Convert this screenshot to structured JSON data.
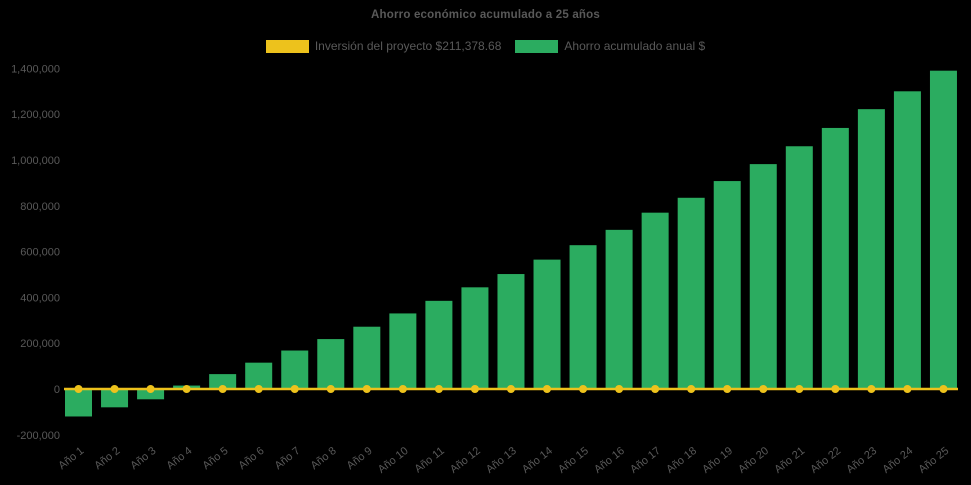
{
  "title": "Ahorro económico acumulado a 25 años",
  "legend": {
    "items": [
      {
        "label": "Inversión del proyecto $211,378.68",
        "color": "#EDC21C",
        "series": "investment-line"
      },
      {
        "label": "Ahorro acumulado anual $",
        "color": "#2BAC60",
        "series": "savings-bars"
      }
    ]
  },
  "colors": {
    "background": "#000000",
    "text": "#595959",
    "bar": "#2BAC60",
    "line": "#EDC21C"
  },
  "chart_data": {
    "type": "bar",
    "title": "Ahorro económico acumulado a 25 años",
    "categories": [
      "Año 1",
      "Año 2",
      "Año 3",
      "Año 4",
      "Año 5",
      "Año 6",
      "Año 7",
      "Año 8",
      "Año 9",
      "Año 10",
      "Año 11",
      "Año 12",
      "Año 13",
      "Año 14",
      "Año 15",
      "Año 16",
      "Año 17",
      "Año 18",
      "Año 19",
      "Año 20",
      "Año 21",
      "Año 22",
      "Año 23",
      "Año 24",
      "Año 25"
    ],
    "series": [
      {
        "name": "Ahorro acumulado anual $",
        "type": "bar",
        "color": "#2BAC60",
        "values": [
          -120000,
          -80000,
          -45000,
          15000,
          65000,
          115000,
          168000,
          218000,
          272000,
          330000,
          385000,
          444000,
          502000,
          565000,
          628000,
          695000,
          770000,
          835000,
          908000,
          982000,
          1060000,
          1140000,
          1222000,
          1300000,
          1390000
        ]
      },
      {
        "name": "Inversión del proyecto $211,378.68",
        "type": "line",
        "color": "#EDC21C",
        "marker": "circle",
        "values": [
          0,
          0,
          0,
          0,
          0,
          0,
          0,
          0,
          0,
          0,
          0,
          0,
          0,
          0,
          0,
          0,
          0,
          0,
          0,
          0,
          0,
          0,
          0,
          0,
          0
        ]
      }
    ],
    "xlabel": "",
    "ylabel": "",
    "ylim": [
      -200000,
      1400000
    ],
    "ytick_step": 200000,
    "ytick_labels": [
      "-200,000",
      "0",
      "200,000",
      "400,000",
      "600,000",
      "800,000",
      "1,000,000",
      "1,200,000",
      "1,400,000"
    ],
    "grid": false,
    "legend_position": "top"
  }
}
